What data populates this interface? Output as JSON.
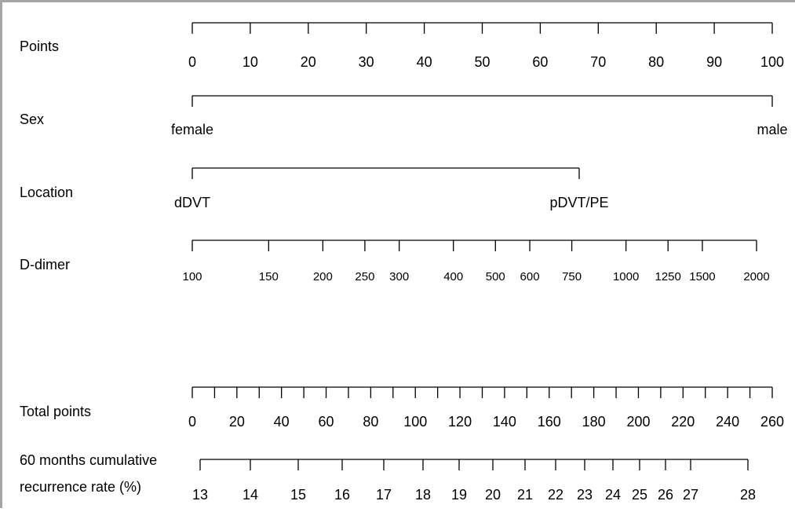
{
  "nomogram": {
    "points": {
      "label": "Points",
      "ticks": [
        "0",
        "10",
        "20",
        "30",
        "40",
        "50",
        "60",
        "70",
        "80",
        "90",
        "100"
      ]
    },
    "sex": {
      "label": "Sex",
      "levels": [
        "female",
        "male"
      ]
    },
    "location": {
      "label": "Location",
      "levels": [
        "dDVT",
        "pDVT/PE"
      ]
    },
    "ddimer": {
      "label": "D-dimer",
      "ticks": [
        "100",
        "150",
        "200",
        "250",
        "300",
        "400",
        "500",
        "600",
        "750",
        "1000",
        "1250",
        "1500",
        "2000"
      ]
    },
    "total_points": {
      "label": "Total points",
      "labels": [
        "0",
        "20",
        "40",
        "60",
        "80",
        "100",
        "120",
        "140",
        "160",
        "180",
        "200",
        "220",
        "240",
        "260"
      ]
    },
    "recurrence": {
      "label_line1": "60 months cumulative",
      "label_line2": "recurrence rate (%)",
      "ticks": [
        "13",
        "14",
        "15",
        "16",
        "17",
        "18",
        "19",
        "20",
        "21",
        "22",
        "23",
        "24",
        "25",
        "26",
        "27",
        "28"
      ]
    }
  }
}
